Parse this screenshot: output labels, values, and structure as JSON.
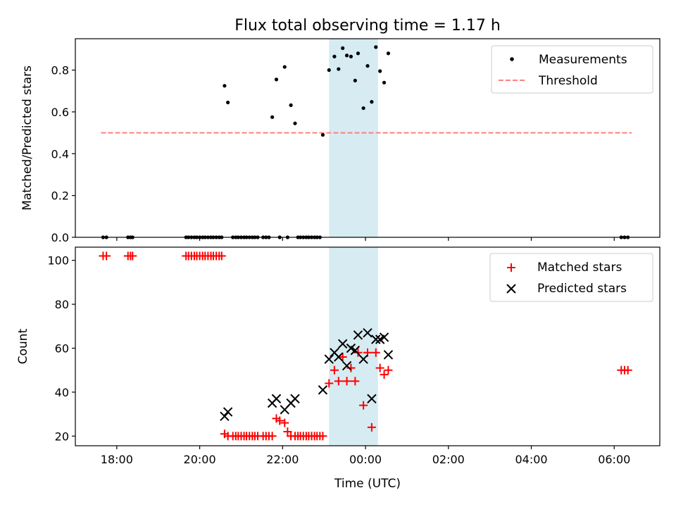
{
  "figure_title": "Flux total observing time = 1.17 h",
  "colors": {
    "measurement": "#000000",
    "threshold": "#ff7f7f",
    "matched": "#ff0000",
    "predicted": "#000000",
    "highlight": "#add8e6"
  },
  "chart_data": [
    {
      "type": "scatter",
      "ylabel": "Matched/Predicted stars",
      "xlabel": "",
      "xlim": [
        17.0,
        31.1
      ],
      "ylim": [
        0.0,
        0.95
      ],
      "yticks": [
        0.0,
        0.2,
        0.4,
        0.6,
        0.8
      ],
      "ytick_labels": [
        "0.0",
        "0.2",
        "0.4",
        "0.6",
        "0.8"
      ],
      "highlight_span": [
        23.12,
        24.3
      ],
      "legend": {
        "position": "top-right",
        "entries": [
          "Measurements",
          "Threshold"
        ]
      },
      "threshold": {
        "name": "Threshold",
        "x": [
          17.62,
          30.42
        ],
        "y": 0.5
      },
      "series": [
        {
          "name": "Measurements",
          "marker": "dot",
          "points": [
            [
              17.67,
              0.0
            ],
            [
              17.75,
              0.0
            ],
            [
              18.27,
              0.0
            ],
            [
              18.33,
              0.0
            ],
            [
              18.38,
              0.0
            ],
            [
              19.67,
              0.0
            ],
            [
              19.73,
              0.0
            ],
            [
              19.8,
              0.0
            ],
            [
              19.87,
              0.0
            ],
            [
              19.93,
              0.0
            ],
            [
              20.0,
              0.0
            ],
            [
              20.07,
              0.0
            ],
            [
              20.13,
              0.0
            ],
            [
              20.2,
              0.0
            ],
            [
              20.27,
              0.0
            ],
            [
              20.33,
              0.0
            ],
            [
              20.4,
              0.0
            ],
            [
              20.47,
              0.0
            ],
            [
              20.53,
              0.0
            ],
            [
              20.6,
              0.725
            ],
            [
              20.68,
              0.645
            ],
            [
              20.8,
              0.0
            ],
            [
              20.87,
              0.0
            ],
            [
              20.93,
              0.0
            ],
            [
              21.0,
              0.0
            ],
            [
              21.07,
              0.0
            ],
            [
              21.13,
              0.0
            ],
            [
              21.2,
              0.0
            ],
            [
              21.27,
              0.0
            ],
            [
              21.33,
              0.0
            ],
            [
              21.4,
              0.0
            ],
            [
              21.53,
              0.0
            ],
            [
              21.6,
              0.0
            ],
            [
              21.67,
              0.0
            ],
            [
              21.75,
              0.575
            ],
            [
              21.85,
              0.755
            ],
            [
              21.93,
              0.0
            ],
            [
              22.05,
              0.815
            ],
            [
              22.12,
              0.0
            ],
            [
              22.2,
              0.632
            ],
            [
              22.3,
              0.545
            ],
            [
              22.37,
              0.0
            ],
            [
              22.43,
              0.0
            ],
            [
              22.5,
              0.0
            ],
            [
              22.57,
              0.0
            ],
            [
              22.63,
              0.0
            ],
            [
              22.7,
              0.0
            ],
            [
              22.77,
              0.0
            ],
            [
              22.83,
              0.0
            ],
            [
              22.9,
              0.0
            ],
            [
              22.97,
              0.49
            ],
            [
              23.12,
              0.8
            ],
            [
              23.25,
              0.865
            ],
            [
              23.35,
              0.805
            ],
            [
              23.45,
              0.905
            ],
            [
              23.55,
              0.87
            ],
            [
              23.65,
              0.865
            ],
            [
              23.75,
              0.75
            ],
            [
              23.82,
              0.88
            ],
            [
              23.95,
              0.618
            ],
            [
              24.05,
              0.82
            ],
            [
              24.15,
              0.648
            ],
            [
              24.25,
              0.91
            ],
            [
              24.35,
              0.795
            ],
            [
              24.45,
              0.74
            ],
            [
              24.55,
              0.88
            ],
            [
              30.17,
              0.0
            ],
            [
              30.25,
              0.0
            ],
            [
              30.33,
              0.0
            ]
          ]
        }
      ]
    },
    {
      "type": "scatter",
      "xlabel": "Time (UTC)",
      "ylabel": "Count",
      "xlim": [
        17.0,
        31.1
      ],
      "ylim": [
        15.6,
        106.0
      ],
      "yticks": [
        20,
        40,
        60,
        80,
        100
      ],
      "ytick_labels": [
        "20",
        "40",
        "60",
        "80",
        "100"
      ],
      "xticks": [
        18,
        20,
        22,
        24,
        26,
        28,
        30
      ],
      "xtick_labels": [
        "18:00",
        "20:00",
        "22:00",
        "00:00",
        "02:00",
        "04:00",
        "06:00"
      ],
      "highlight_span": [
        23.12,
        24.3
      ],
      "legend": {
        "position": "top-right",
        "entries": [
          "Matched stars",
          "Predicted stars"
        ]
      },
      "series": [
        {
          "name": "Matched stars",
          "marker": "plus",
          "points": [
            [
              17.67,
              102
            ],
            [
              17.75,
              102
            ],
            [
              18.27,
              102
            ],
            [
              18.33,
              102
            ],
            [
              18.38,
              102
            ],
            [
              19.67,
              102
            ],
            [
              19.73,
              102
            ],
            [
              19.8,
              102
            ],
            [
              19.87,
              102
            ],
            [
              19.93,
              102
            ],
            [
              20.0,
              102
            ],
            [
              20.07,
              102
            ],
            [
              20.13,
              102
            ],
            [
              20.2,
              102
            ],
            [
              20.27,
              102
            ],
            [
              20.33,
              102
            ],
            [
              20.4,
              102
            ],
            [
              20.47,
              102
            ],
            [
              20.53,
              102
            ],
            [
              20.6,
              21
            ],
            [
              20.68,
              20
            ],
            [
              20.8,
              20
            ],
            [
              20.87,
              20
            ],
            [
              20.93,
              20
            ],
            [
              21.0,
              20
            ],
            [
              21.07,
              20
            ],
            [
              21.13,
              20
            ],
            [
              21.2,
              20
            ],
            [
              21.27,
              20
            ],
            [
              21.33,
              20
            ],
            [
              21.4,
              20
            ],
            [
              21.53,
              20
            ],
            [
              21.6,
              20
            ],
            [
              21.67,
              20
            ],
            [
              21.75,
              20
            ],
            [
              21.85,
              28
            ],
            [
              21.93,
              27
            ],
            [
              22.05,
              26
            ],
            [
              22.12,
              22
            ],
            [
              22.2,
              20
            ],
            [
              22.3,
              20
            ],
            [
              22.37,
              20
            ],
            [
              22.43,
              20
            ],
            [
              22.5,
              20
            ],
            [
              22.57,
              20
            ],
            [
              22.63,
              20
            ],
            [
              22.7,
              20
            ],
            [
              22.77,
              20
            ],
            [
              22.83,
              20
            ],
            [
              22.9,
              20
            ],
            [
              22.97,
              20
            ],
            [
              23.12,
              44
            ],
            [
              23.25,
              50
            ],
            [
              23.35,
              45
            ],
            [
              23.45,
              56
            ],
            [
              23.55,
              45
            ],
            [
              23.65,
              51
            ],
            [
              23.75,
              45
            ],
            [
              23.82,
              58
            ],
            [
              23.95,
              34
            ],
            [
              24.05,
              58
            ],
            [
              24.15,
              24
            ],
            [
              24.25,
              58
            ],
            [
              24.35,
              51
            ],
            [
              24.45,
              48
            ],
            [
              24.55,
              50
            ],
            [
              30.17,
              50
            ],
            [
              30.25,
              50
            ],
            [
              30.33,
              50
            ]
          ]
        },
        {
          "name": "Predicted stars",
          "marker": "x",
          "points": [
            [
              20.6,
              29
            ],
            [
              20.68,
              31
            ],
            [
              21.75,
              35
            ],
            [
              21.85,
              37
            ],
            [
              22.05,
              32
            ],
            [
              22.2,
              35
            ],
            [
              22.3,
              37
            ],
            [
              22.97,
              41
            ],
            [
              23.12,
              55
            ],
            [
              23.25,
              58
            ],
            [
              23.35,
              56
            ],
            [
              23.45,
              62
            ],
            [
              23.55,
              52
            ],
            [
              23.65,
              60
            ],
            [
              23.75,
              59
            ],
            [
              23.82,
              66
            ],
            [
              23.95,
              55
            ],
            [
              24.05,
              67
            ],
            [
              24.15,
              37
            ],
            [
              24.25,
              64
            ],
            [
              24.35,
              64
            ],
            [
              24.45,
              65
            ],
            [
              24.55,
              57
            ]
          ]
        }
      ]
    }
  ]
}
